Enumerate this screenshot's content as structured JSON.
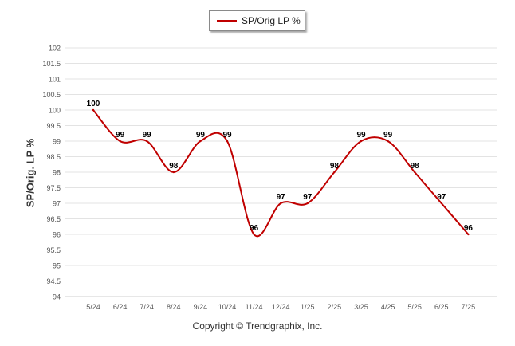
{
  "legend": {
    "label": "SP/Orig LP %"
  },
  "footer": {
    "copyright": "Copyright © Trendgraphix, Inc."
  },
  "colors": {
    "series": "#c00000",
    "grid": "#e3e3e3",
    "axis_text": "#555555",
    "label_text": "#000000"
  },
  "chart_data": {
    "type": "line",
    "title": "",
    "xlabel": "",
    "ylabel": "SP/Orig. LP %",
    "ylim": [
      94,
      102
    ],
    "y_ticks": [
      "94",
      "94.5",
      "95",
      "95.5",
      "96",
      "96.5",
      "97",
      "97.5",
      "98",
      "98.5",
      "99",
      "99.5",
      "100",
      "100.5",
      "101",
      "101.5",
      "102"
    ],
    "grid": true,
    "legend_position": "top-center",
    "categories": [
      "5/24",
      "6/24",
      "7/24",
      "8/24",
      "9/24",
      "10/24",
      "11/24",
      "12/24",
      "1/25",
      "2/25",
      "3/25",
      "4/25",
      "5/25",
      "6/25",
      "7/25"
    ],
    "series": [
      {
        "name": "SP/Orig LP %",
        "values": [
          100,
          99,
          99,
          98,
          99,
          99,
          96,
          97,
          97,
          98,
          99,
          99,
          98,
          97,
          96
        ],
        "data_labels": [
          "100",
          "99",
          "99",
          "98",
          "99",
          "99",
          "96",
          "97",
          "97",
          "98",
          "99",
          "99",
          "98",
          "97",
          "96"
        ]
      }
    ]
  }
}
